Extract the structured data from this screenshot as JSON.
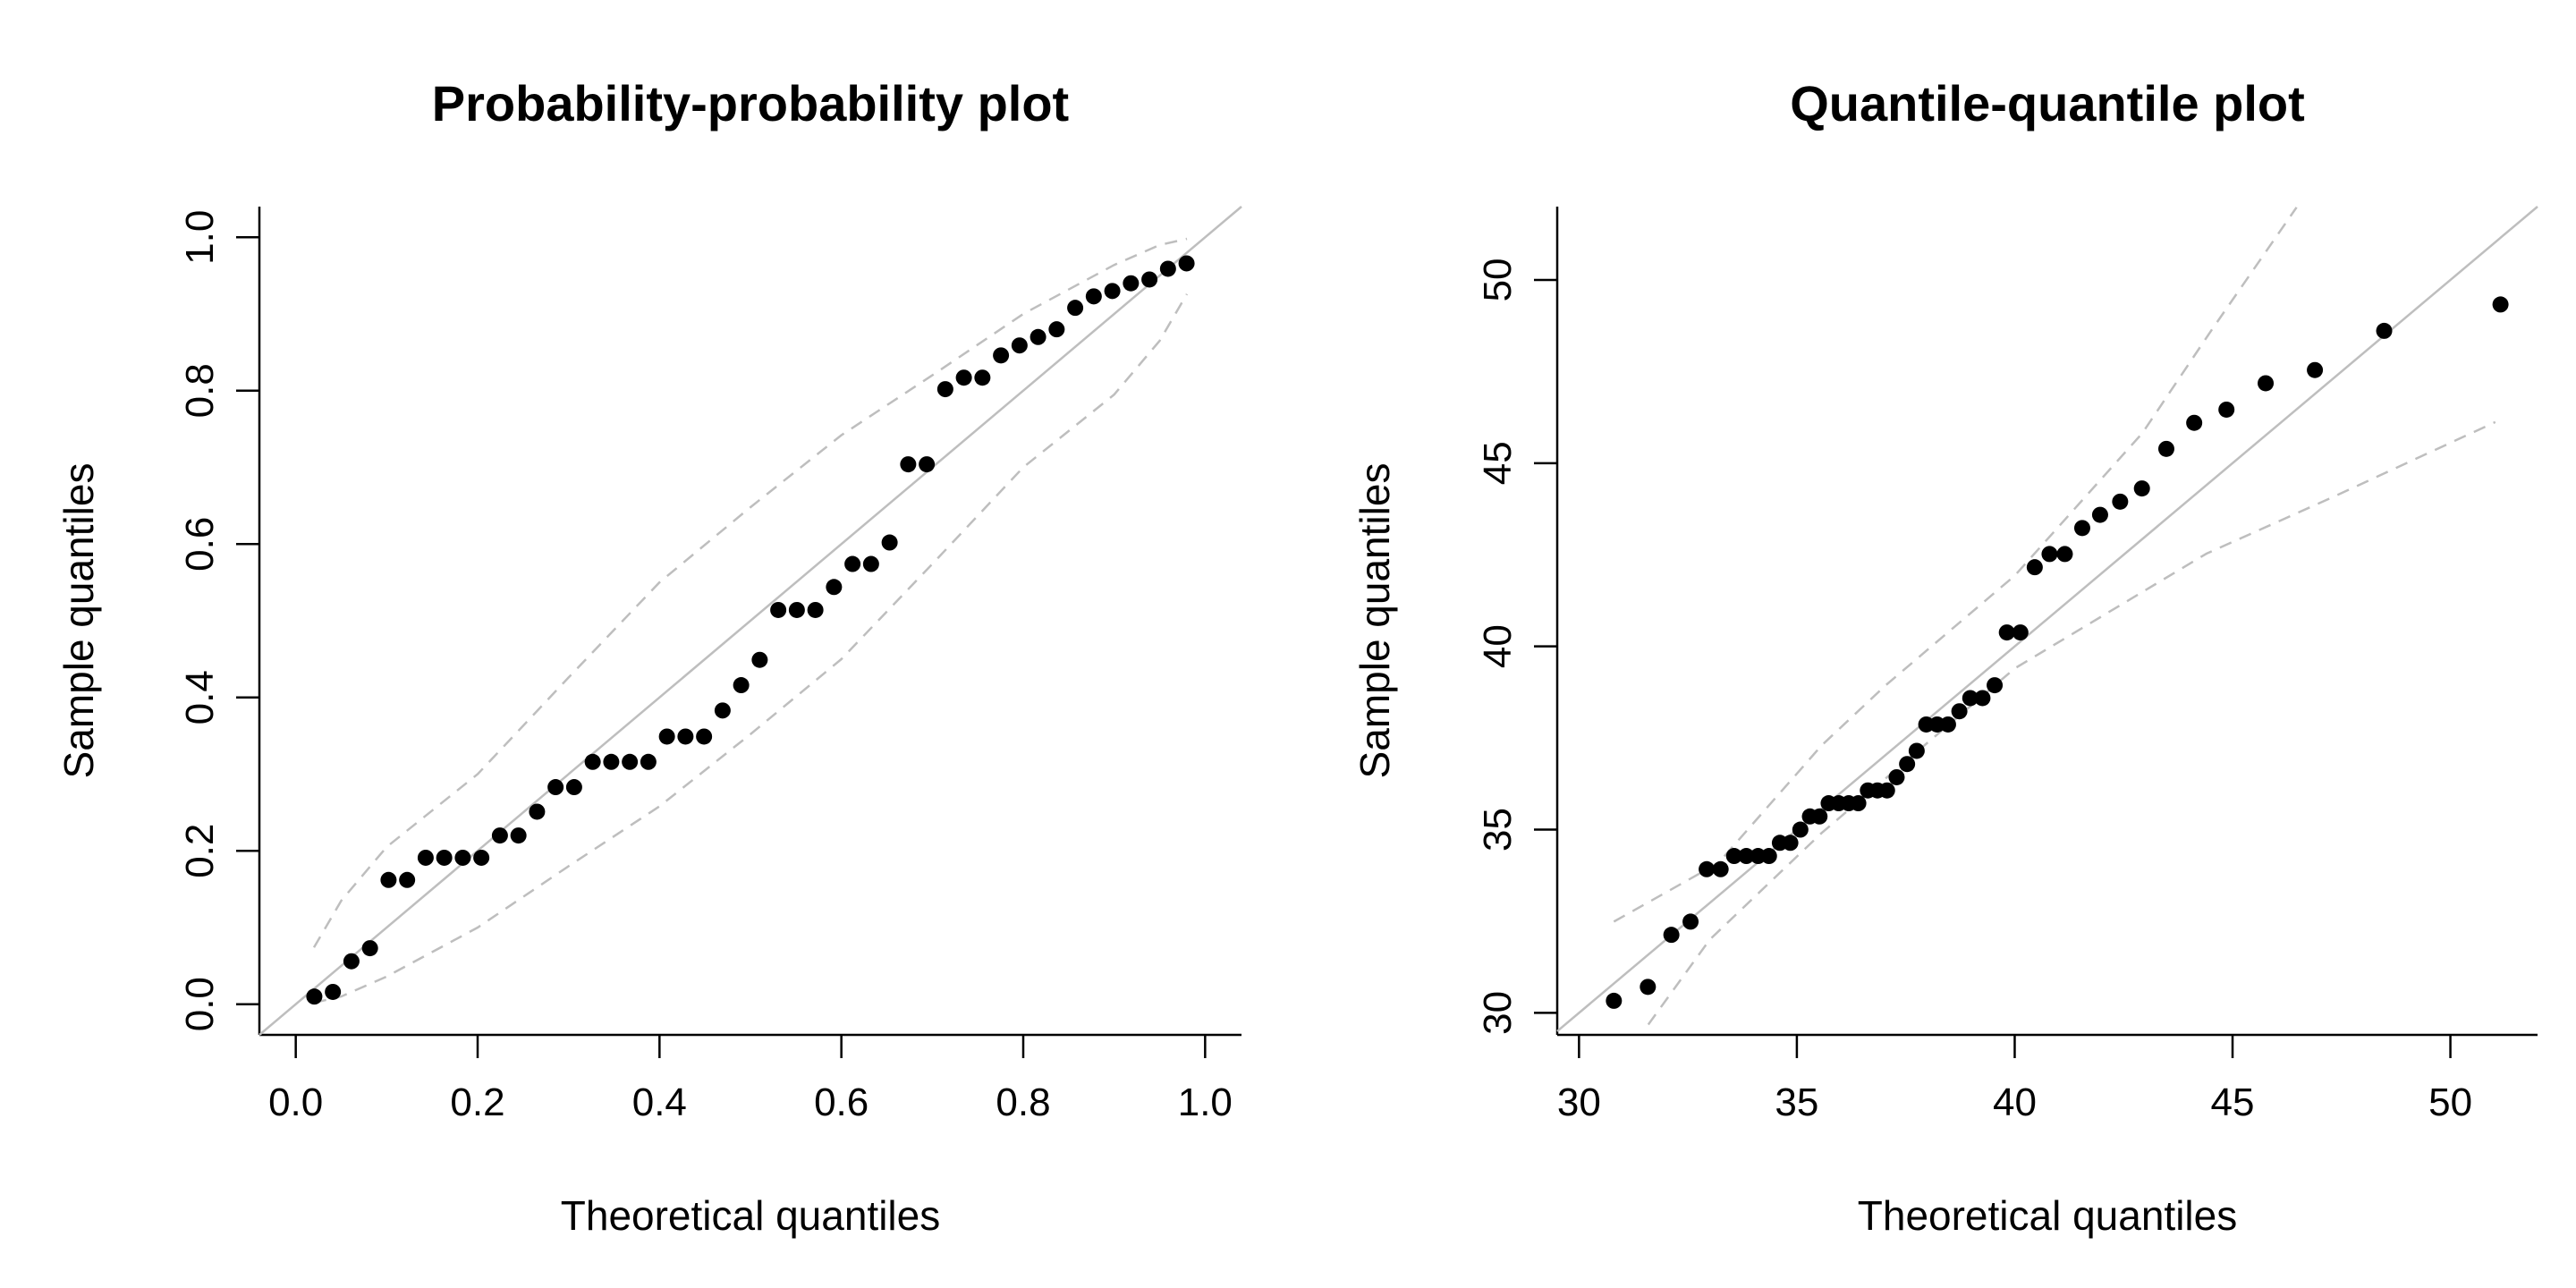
{
  "chart_data": [
    {
      "type": "scatter",
      "title": "Probability-probability plot",
      "xlabel": "Theoretical quantiles",
      "ylabel": "Sample quantiles",
      "xlim": [
        -0.04,
        1.04
      ],
      "ylim": [
        -0.04,
        1.04
      ],
      "xticks": [
        0.0,
        0.2,
        0.4,
        0.6,
        0.8,
        1.0
      ],
      "xtick_labels": [
        "0.0",
        "0.2",
        "0.4",
        "0.6",
        "0.8",
        "1.0"
      ],
      "yticks": [
        0.0,
        0.2,
        0.4,
        0.6,
        0.8,
        1.0
      ],
      "ytick_labels": [
        "0.0",
        "0.2",
        "0.4",
        "0.6",
        "0.8",
        "1.0"
      ],
      "grid": false,
      "reference_line": "y = x",
      "points_x_rule": "i/49 for i = 1..48",
      "points_y": [
        0.01,
        0.016,
        0.056,
        0.073,
        0.162,
        0.162,
        0.191,
        0.191,
        0.191,
        0.191,
        0.22,
        0.22,
        0.251,
        0.283,
        0.283,
        0.316,
        0.316,
        0.316,
        0.316,
        0.349,
        0.349,
        0.349,
        0.383,
        0.416,
        0.449,
        0.514,
        0.514,
        0.514,
        0.544,
        0.574,
        0.574,
        0.602,
        0.704,
        0.704,
        0.802,
        0.817,
        0.817,
        0.846,
        0.859,
        0.87,
        0.88,
        0.908,
        0.923,
        0.93,
        0.94,
        0.945,
        0.959,
        0.966
      ],
      "band_upper": [
        [
          0.02,
          0.074
        ],
        [
          0.05,
          0.135
        ],
        [
          0.1,
          0.205
        ],
        [
          0.2,
          0.3
        ],
        [
          0.3,
          0.426
        ],
        [
          0.4,
          0.55
        ],
        [
          0.5,
          0.648
        ],
        [
          0.6,
          0.742
        ],
        [
          0.7,
          0.82
        ],
        [
          0.8,
          0.9
        ],
        [
          0.9,
          0.964
        ],
        [
          0.95,
          0.99
        ],
        [
          0.98,
          0.998
        ]
      ],
      "band_lower": [
        [
          0.02,
          0.002
        ],
        [
          0.05,
          0.01
        ],
        [
          0.1,
          0.036
        ],
        [
          0.2,
          0.1
        ],
        [
          0.3,
          0.18
        ],
        [
          0.4,
          0.258
        ],
        [
          0.5,
          0.352
        ],
        [
          0.6,
          0.45
        ],
        [
          0.7,
          0.574
        ],
        [
          0.8,
          0.7
        ],
        [
          0.9,
          0.795
        ],
        [
          0.95,
          0.865
        ],
        [
          0.98,
          0.926
        ]
      ]
    },
    {
      "type": "scatter",
      "title": "Quantile-quantile plot",
      "xlabel": "Theoretical quantiles",
      "ylabel": "Sample quantiles",
      "xlim": [
        29.5,
        52.0
      ],
      "ylim": [
        29.4,
        52.0
      ],
      "xticks": [
        30,
        35,
        40,
        45,
        50
      ],
      "xtick_labels": [
        "30",
        "35",
        "40",
        "45",
        "50"
      ],
      "yticks": [
        30,
        35,
        40,
        45,
        50
      ],
      "ytick_labels": [
        "30",
        "35",
        "40",
        "45",
        "50"
      ],
      "grid": false,
      "reference_line": "y = x",
      "points_x": [
        30.8,
        31.58,
        32.12,
        32.56,
        32.93,
        33.25,
        33.56,
        33.84,
        34.11,
        34.36,
        34.61,
        34.85,
        35.08,
        35.3,
        35.52,
        35.73,
        35.96,
        36.19,
        36.41,
        36.63,
        36.85,
        37.07,
        37.29,
        37.53,
        37.75,
        37.97,
        38.22,
        38.47,
        38.73,
        38.98,
        39.26,
        39.54,
        39.82,
        40.13,
        40.46,
        40.8,
        41.15,
        41.55,
        41.96,
        42.42,
        42.92,
        43.48,
        44.12,
        44.86,
        45.76,
        46.89,
        48.48,
        51.15
      ],
      "points_y": [
        30.33,
        30.71,
        32.13,
        32.49,
        33.92,
        33.92,
        34.28,
        34.28,
        34.28,
        34.28,
        34.64,
        34.64,
        35.0,
        35.36,
        35.36,
        35.72,
        35.72,
        35.72,
        35.72,
        36.07,
        36.07,
        36.07,
        36.43,
        36.79,
        37.15,
        37.87,
        37.87,
        37.87,
        38.23,
        38.59,
        38.59,
        38.94,
        40.38,
        40.38,
        42.16,
        42.52,
        42.52,
        43.23,
        43.59,
        43.95,
        44.31,
        45.39,
        46.1,
        46.46,
        47.18,
        47.54,
        48.61,
        49.33
      ],
      "band_upper": [
        [
          30.8,
          32.49
        ],
        [
          33.2,
          34.09
        ],
        [
          35.57,
          37.3
        ],
        [
          37.04,
          38.94
        ],
        [
          40.0,
          41.93
        ],
        [
          42.93,
          45.82
        ],
        [
          44.5,
          48.6
        ],
        [
          46.47,
          51.98
        ]
      ],
      "band_lower": [
        [
          31.59,
          29.68
        ],
        [
          33.0,
          32.0
        ],
        [
          35.57,
          34.91
        ],
        [
          40.0,
          39.4
        ],
        [
          44.4,
          42.53
        ],
        [
          47.35,
          44.1
        ],
        [
          51.03,
          46.12
        ]
      ]
    }
  ]
}
